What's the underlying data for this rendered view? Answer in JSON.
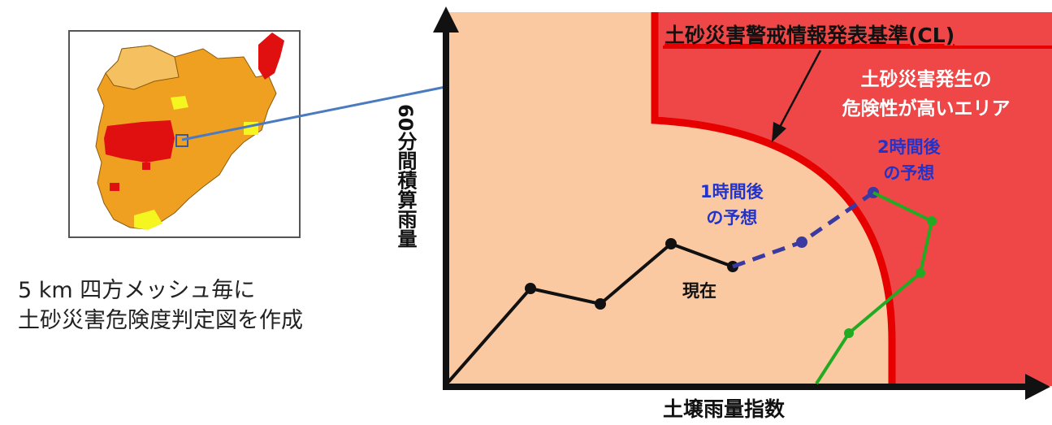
{
  "map": {
    "caption_line1": "5 km 四方メッシュ毎に",
    "caption_line2": "土砂災害危険度判定図を作成",
    "colors": {
      "orange": "#f0a020",
      "light_orange": "#f5c060",
      "red": "#e01010",
      "yellow": "#f5f520"
    }
  },
  "diagram": {
    "y_label": "60分間積算雨量",
    "x_label": "土壌雨量指数",
    "cl_label": "土砂災害警戒情報発表基準(CL)",
    "danger_line1": "土砂災害発生の",
    "danger_line2": "危険性が高いエリア",
    "forecast_1h_line1": "1時間後",
    "forecast_1h_line2": "の予想",
    "forecast_2h_line1": "2時間後",
    "forecast_2h_line2": "の予想",
    "now_label": "現在",
    "colors": {
      "safe_area": "#fac9a1",
      "danger_area": "#ef4747",
      "cl_line": "#e60000",
      "current_path": "#111111",
      "forecast_path": "#3a3aa0",
      "other_path": "#22aa22",
      "arrow_link": "#4a7ac0"
    }
  }
}
